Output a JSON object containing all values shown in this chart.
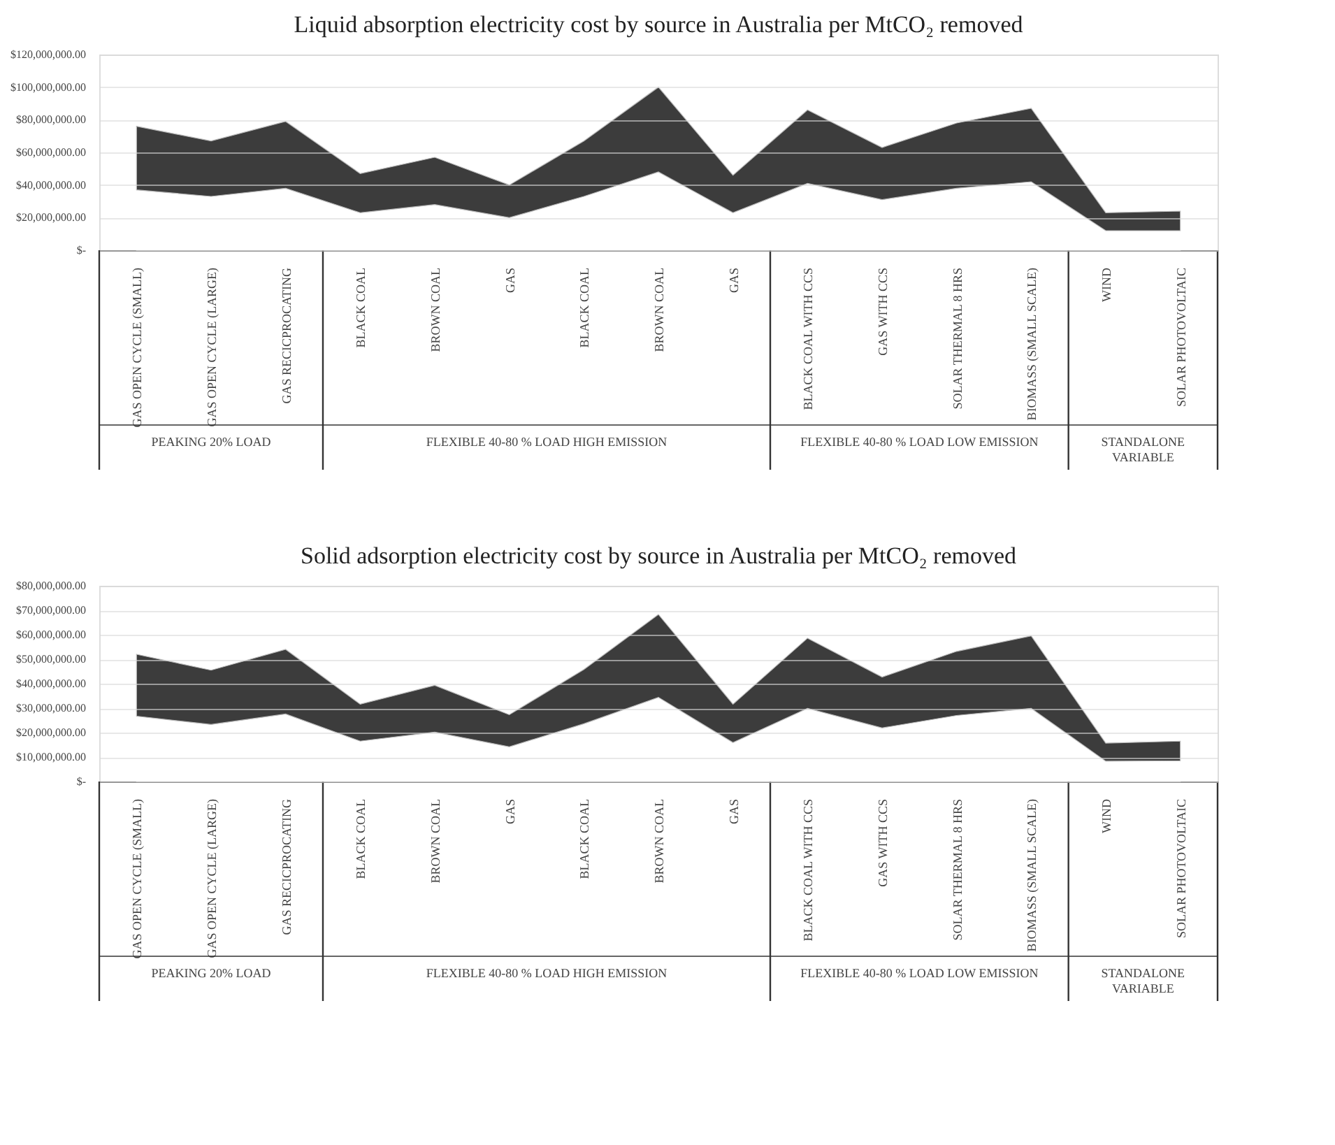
{
  "chart_data": [
    {
      "type": "area",
      "stacked": true,
      "title": "Liquid absorption electricity cost by source in Australia per MtCO₂ removed",
      "categories": [
        "GAS  OPEN CYCLE (SMALL)",
        "GAS OPEN CYCLE (LARGE)",
        "GAS RECICPROCATING",
        "BLACK COAL",
        "BROWN COAL",
        "GAS",
        "BLACK COAL",
        "BROWN COAL",
        "GAS",
        "BLACK COAL  WITH CCS",
        "GAS WITH CCS",
        "SOLAR THERMAL 8 HRS",
        "BIOMASS (SMALL  SCALE)",
        "WIND",
        "SOLAR PHOTOVOLTAIC"
      ],
      "series": [
        {
          "color": "#ffffff",
          "values": [
            37000000,
            33000000,
            38000000,
            23000000,
            28000000,
            20000000,
            33000000,
            48000000,
            23000000,
            41000000,
            31000000,
            38000000,
            42000000,
            12000000,
            12000000
          ]
        },
        {
          "color": "#3c3c3c",
          "values": [
            39000000,
            34000000,
            41000000,
            24000000,
            29000000,
            20000000,
            34000000,
            52000000,
            23000000,
            45000000,
            32000000,
            40000000,
            45000000,
            11000000,
            12000000
          ]
        }
      ],
      "ylim": [
        0,
        120000000
      ],
      "yticks": [
        {
          "value": 0,
          "label": "$-"
        },
        {
          "value": 20000000,
          "label": "$20,000,000.00"
        },
        {
          "value": 40000000,
          "label": "$40,000,000.00"
        },
        {
          "value": 60000000,
          "label": "$60,000,000.00"
        },
        {
          "value": 80000000,
          "label": "$80,000,000.00"
        },
        {
          "value": 100000000,
          "label": "$100,000,000.00"
        },
        {
          "value": 120000000,
          "label": "$120,000,000.00"
        }
      ],
      "grid": "y",
      "annotations": [
        "PEAKING  20% LOAD",
        "FLEXIBLE  40-80  % LOAD HIGH EMISSION",
        "FLEXIBLE  40-80  % LOAD LOW EMISSION",
        "STANDALONE VARIABLE"
      ]
    },
    {
      "type": "area",
      "stacked": true,
      "title": "Solid adsorption electricity cost by source in Australia per MtCO₂ removed",
      "categories": [
        "GAS  OPEN CYCLE (SMALL)",
        "GAS OPEN CYCLE (LARGE)",
        "GAS RECICPROCATING",
        "BLACK COAL",
        "BROWN COAL",
        "GAS",
        "BLACK COAL",
        "BROWN COAL",
        "GAS",
        "BLACK COAL  WITH CCS",
        "GAS WITH CCS",
        "SOLAR THERMAL 8 HRS",
        "BIOMASS (SMALL  SCALE)",
        "WIND",
        "SOLAR PHOTOVOLTAIC"
      ],
      "series": [
        {
          "color": "#ffffff",
          "values": [
            26700000,
            23300000,
            27600000,
            16500000,
            20200000,
            14200000,
            23600000,
            34400000,
            15900000,
            29900000,
            21900000,
            27000000,
            29900000,
            8300000,
            8500000
          ]
        },
        {
          "color": "#3c3c3c",
          "values": [
            25300000,
            22200000,
            26400000,
            15100000,
            19100000,
            13100000,
            22200000,
            33900000,
            15700000,
            28700000,
            20800000,
            26200000,
            29600000,
            7400000,
            8000000
          ]
        }
      ],
      "ylim": [
        0,
        80000000
      ],
      "yticks": [
        {
          "value": 0,
          "label": "$-"
        },
        {
          "value": 10000000,
          "label": "$10,000,000.00"
        },
        {
          "value": 20000000,
          "label": "$20,000,000.00"
        },
        {
          "value": 30000000,
          "label": "$30,000,000.00"
        },
        {
          "value": 40000000,
          "label": "$40,000,000.00"
        },
        {
          "value": 50000000,
          "label": "$50,000,000.00"
        },
        {
          "value": 60000000,
          "label": "$60,000,000.00"
        },
        {
          "value": 70000000,
          "label": "$70,000,000.00"
        },
        {
          "value": 80000000,
          "label": "$80,000,000.00"
        }
      ],
      "grid": "y",
      "annotations": [
        "PEAKING  20% LOAD",
        "FLEXIBLE  40-80  % LOAD HIGH EMISSION",
        "FLEXIBLE  40-80  % LOAD LOW EMISSION",
        "STANDALONE VARIABLE"
      ]
    }
  ]
}
